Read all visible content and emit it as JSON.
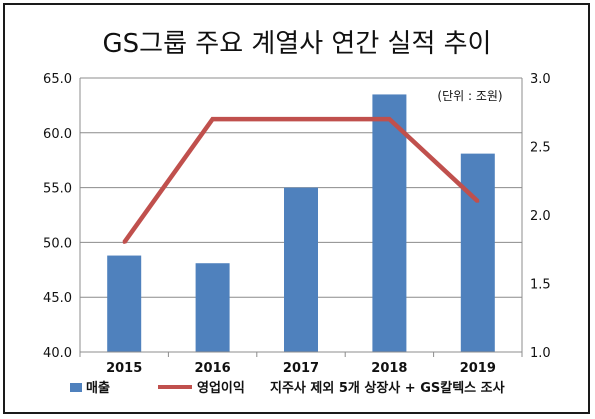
{
  "chart_data": {
    "type": "bar",
    "title": "GS그룹 주요 계열사 연간 실적 추이",
    "unit_note": "(단위 : 조원)",
    "categories": [
      "2015",
      "2016",
      "2017",
      "2018",
      "2019"
    ],
    "series": [
      {
        "name": "매출",
        "type": "bar",
        "axis": "left",
        "color": "#4f81bd",
        "values": [
          48.8,
          48.1,
          55.0,
          63.5,
          58.1
        ]
      },
      {
        "name": "영업이익",
        "type": "line",
        "axis": "right",
        "color": "#c0504d",
        "values": [
          1.8,
          2.7,
          2.7,
          2.7,
          2.1
        ]
      }
    ],
    "y_left": {
      "ylim": [
        40.0,
        65.0
      ],
      "ticks": [
        "40.0",
        "45.0",
        "50.0",
        "55.0",
        "60.0",
        "65.0"
      ]
    },
    "y_right": {
      "ylim": [
        1.0,
        3.0
      ],
      "ticks": [
        "1.0",
        "1.5",
        "2.0",
        "2.5",
        "3.0"
      ]
    },
    "grid": true,
    "legend_position": "bottom-left",
    "footnote": "지주사 제외 5개 상장사 + GS칼텍스 조사"
  }
}
